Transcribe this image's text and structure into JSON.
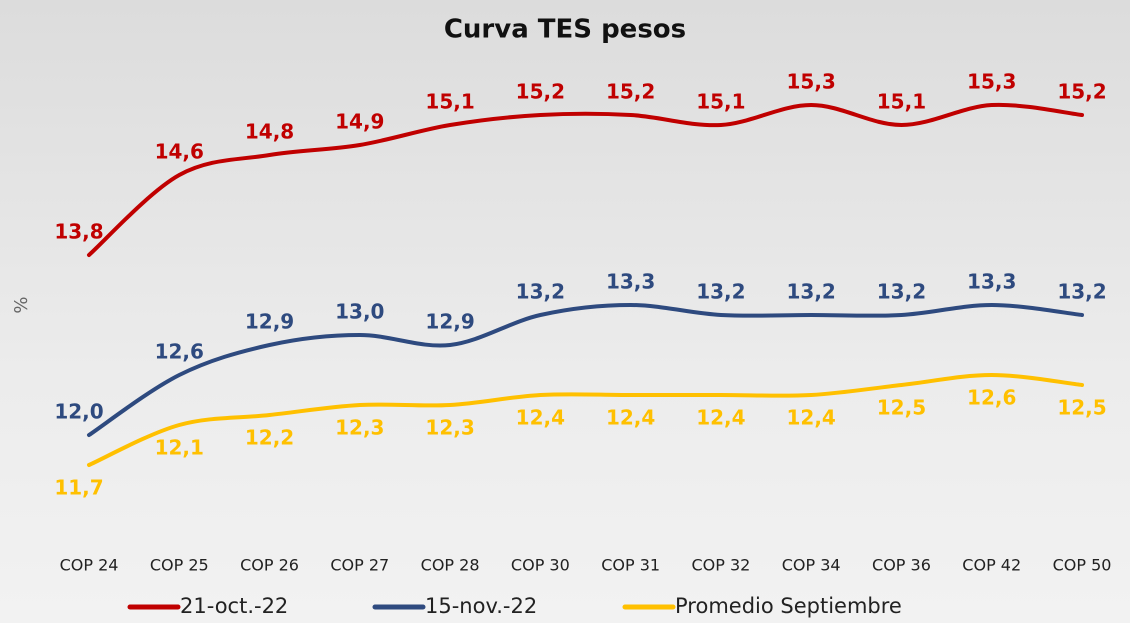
{
  "chart_data": {
    "type": "line",
    "title": "Curva TES pesos",
    "y_label": "%",
    "categories": [
      "COP 24",
      "COP 25",
      "COP 26",
      "COP 27",
      "COP 28",
      "COP 30",
      "COP 31",
      "COP 32",
      "COP 34",
      "COP 36",
      "COP 42",
      "COP 50"
    ],
    "ylim": [
      11,
      16
    ],
    "series": [
      {
        "name": "21-oct.-22",
        "color": "#c00000",
        "values": [
          13.8,
          14.6,
          14.8,
          14.9,
          15.1,
          15.2,
          15.2,
          15.1,
          15.3,
          15.1,
          15.3,
          15.2
        ],
        "value_labels": [
          "13,8",
          "14,6",
          "14,8",
          "14,9",
          "15,1",
          "15,2",
          "15,2",
          "15,1",
          "15,3",
          "15,1",
          "15,3",
          "15,2"
        ]
      },
      {
        "name": "15-nov.-22",
        "color": "#2e4a7f",
        "values": [
          12.0,
          12.6,
          12.9,
          13.0,
          12.9,
          13.2,
          13.3,
          13.2,
          13.2,
          13.2,
          13.3,
          13.2
        ],
        "value_labels": [
          "12,0",
          "12,6",
          "12,9",
          "13,0",
          "12,9",
          "13,2",
          "13,3",
          "13,2",
          "13,2",
          "13,2",
          "13,3",
          "13,2"
        ]
      },
      {
        "name": "Promedio Septiembre",
        "color": "#ffc000",
        "values": [
          11.7,
          12.1,
          12.2,
          12.3,
          12.3,
          12.4,
          12.4,
          12.4,
          12.4,
          12.5,
          12.6,
          12.5
        ],
        "value_labels": [
          "11,7",
          "12,1",
          "12,2",
          "12,3",
          "12,3",
          "12,4",
          "12,4",
          "12,4",
          "12,4",
          "12,5",
          "12,6",
          "12,5"
        ]
      }
    ]
  }
}
